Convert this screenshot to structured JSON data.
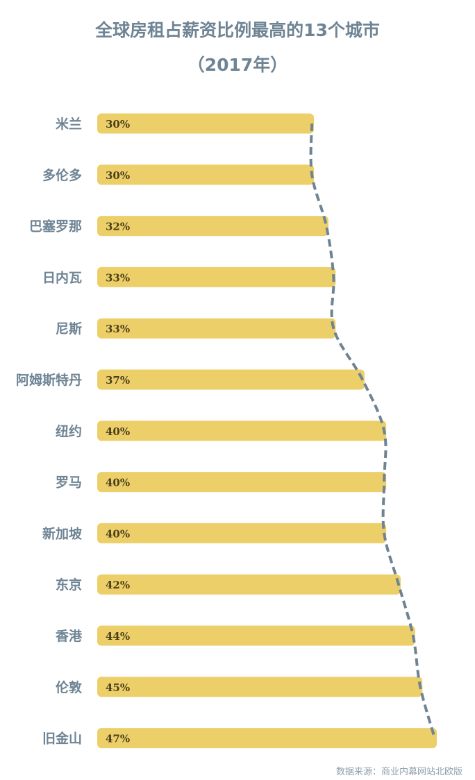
{
  "title": "全球房租占薪资比例最高的13个城市",
  "subtitle": "（2017年）",
  "source": "数据来源：商业内幕网站北欧版",
  "colors": {
    "bar": "#edcf69",
    "line": "#6e8494",
    "label": "#6e8494"
  },
  "chart_data": {
    "type": "bar",
    "orientation": "horizontal",
    "title": "全球房租占薪资比例最高的13个城市",
    "subtitle": "（2017年）",
    "categories": [
      "米兰",
      "多伦多",
      "巴塞罗那",
      "日内瓦",
      "尼斯",
      "阿姆斯特丹",
      "纽约",
      "罗马",
      "新加坡",
      "东京",
      "香港",
      "伦敦",
      "旧金山"
    ],
    "values": [
      30,
      30,
      32,
      33,
      33,
      37,
      40,
      40,
      40,
      42,
      44,
      45,
      47
    ],
    "value_labels": [
      "30%",
      "30%",
      "32%",
      "33%",
      "33%",
      "37%",
      "40%",
      "40%",
      "40%",
      "42%",
      "44%",
      "45%",
      "47%"
    ],
    "unit": "%",
    "trend_line": "dashed",
    "grid": false,
    "legend": "none"
  }
}
